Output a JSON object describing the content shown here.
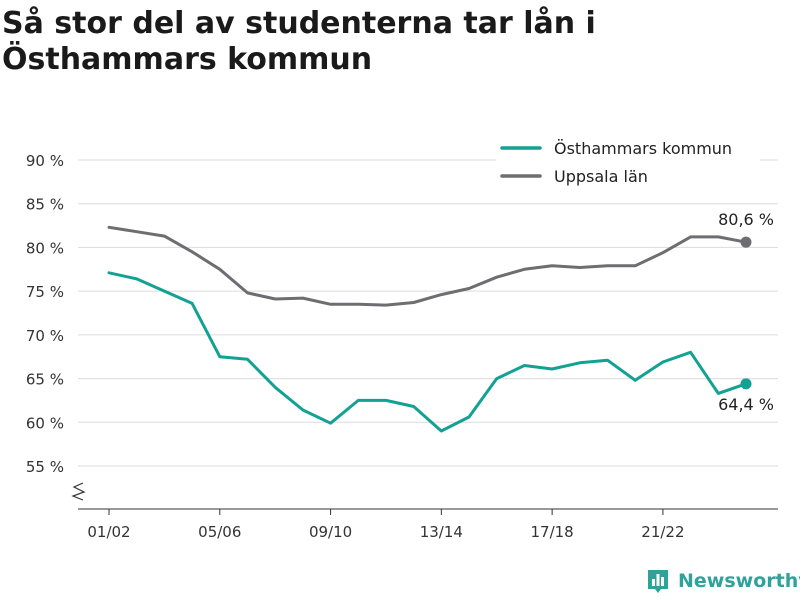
{
  "title": "Så stor del av studenterna tar lån i Östhammars kommun",
  "brand": {
    "name": "Newsworthy",
    "icon": "bar-chart-logo-icon"
  },
  "colors": {
    "series_1": "#12a193",
    "series_2": "#6d6d72",
    "grid": "#dcdcdc",
    "axis_text": "#333333"
  },
  "chart_data": {
    "type": "line",
    "title": "Så stor del av studenterna tar lån i Östhammars kommun",
    "x": [
      "01/02",
      "02/03",
      "03/04",
      "04/05",
      "05/06",
      "06/07",
      "07/08",
      "08/09",
      "09/10",
      "10/11",
      "11/12",
      "12/13",
      "13/14",
      "14/15",
      "15/16",
      "16/17",
      "17/18",
      "18/19",
      "19/20",
      "20/21",
      "21/22",
      "22/23",
      "23/24",
      "24/25"
    ],
    "x_tick_labels": [
      "01/02",
      "05/06",
      "09/10",
      "13/14",
      "17/18",
      "21/22"
    ],
    "y_tick_labels": [
      "55 %",
      "60 %",
      "65 %",
      "70 %",
      "75 %",
      "80 %",
      "85 %",
      "90 %"
    ],
    "ylim": [
      55,
      90
    ],
    "y_axis_break": true,
    "grid": true,
    "legend_position": "top-right",
    "series": [
      {
        "name": "Östhammars kommun",
        "color": "#12a193",
        "values": [
          77.1,
          76.4,
          75.0,
          73.6,
          67.5,
          67.2,
          64.0,
          61.4,
          59.9,
          62.5,
          62.5,
          61.8,
          59.0,
          60.6,
          65.0,
          66.5,
          66.1,
          66.8,
          67.1,
          64.8,
          66.9,
          68.0,
          63.3,
          64.4
        ],
        "end_label": "64,4 %"
      },
      {
        "name": "Uppsala län",
        "color": "#6d6d72",
        "values": [
          82.3,
          81.8,
          81.3,
          79.5,
          77.5,
          74.8,
          74.1,
          74.2,
          73.5,
          73.5,
          73.4,
          73.7,
          74.6,
          75.3,
          76.6,
          77.5,
          77.9,
          77.7,
          77.9,
          77.9,
          79.4,
          81.2,
          81.2,
          80.6
        ],
        "end_label": "80,6 %"
      }
    ]
  }
}
